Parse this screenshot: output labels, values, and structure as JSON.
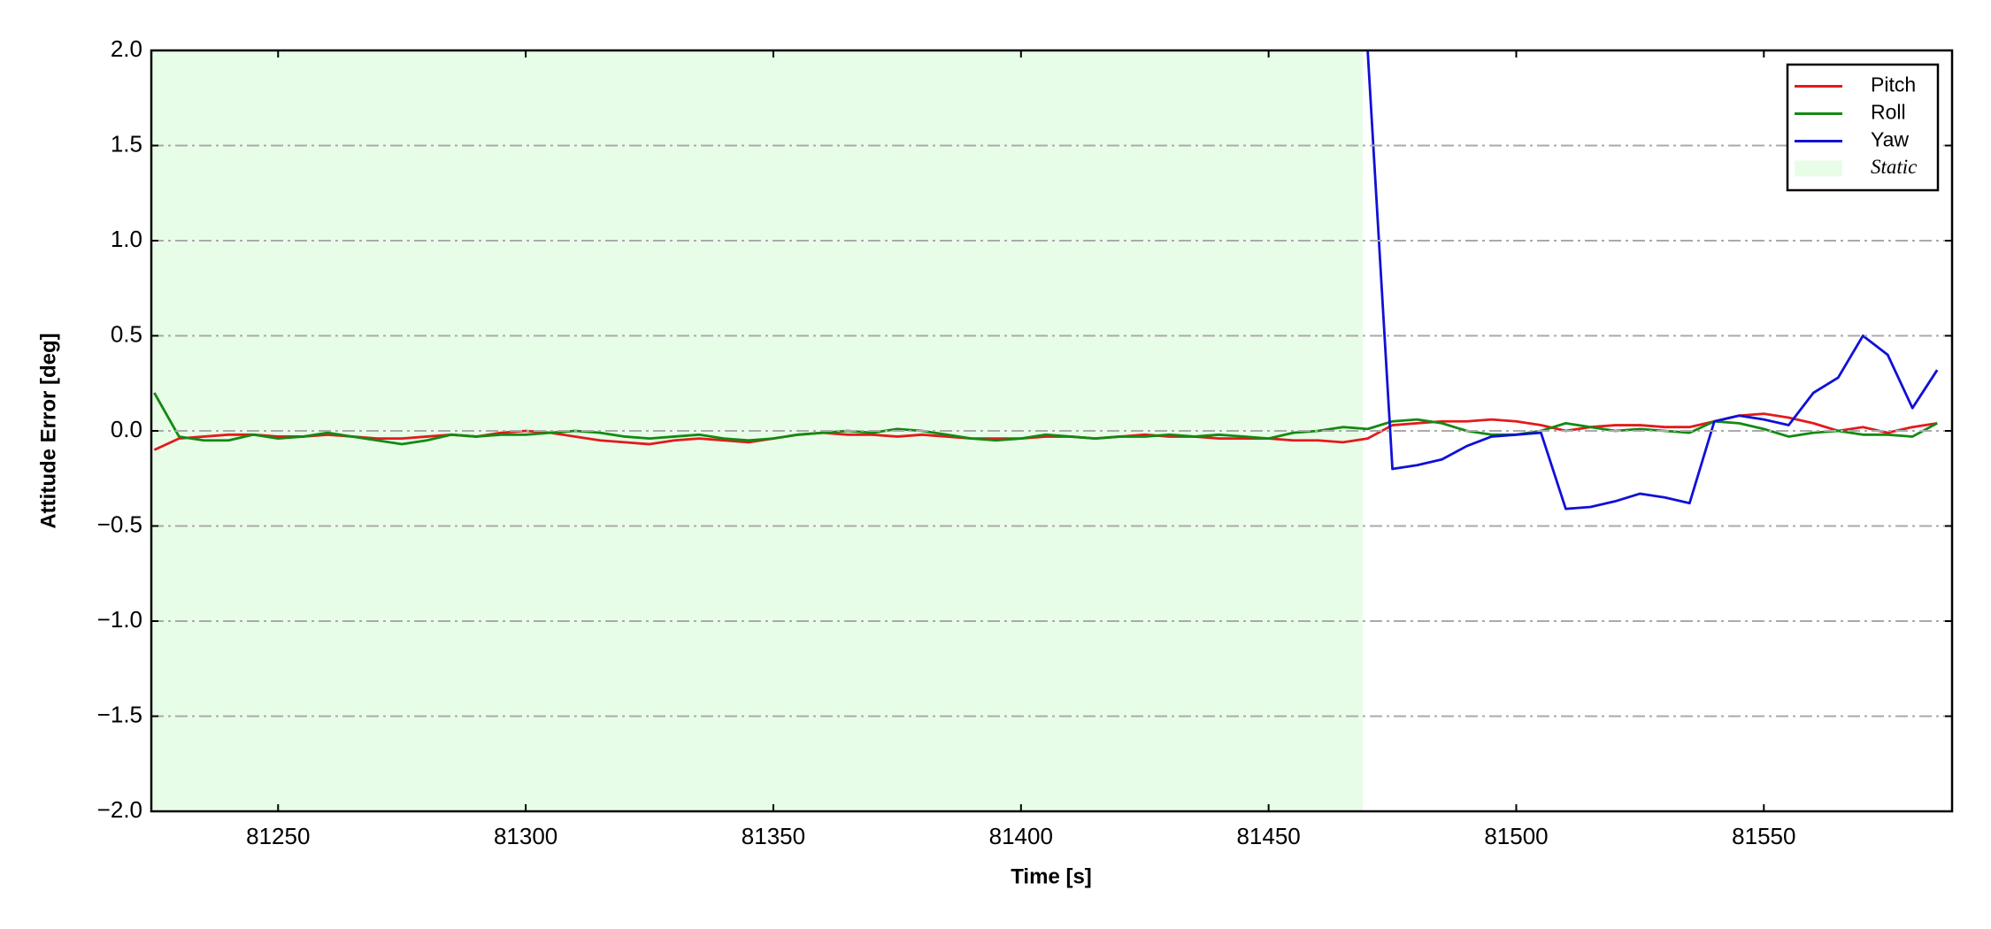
{
  "chart_data": {
    "type": "line",
    "xlabel": "Time [s]",
    "ylabel": "Attitude Error [deg]",
    "x": [
      81225,
      81230,
      81235,
      81240,
      81245,
      81250,
      81255,
      81260,
      81265,
      81270,
      81275,
      81280,
      81285,
      81290,
      81295,
      81300,
      81305,
      81310,
      81315,
      81320,
      81325,
      81330,
      81335,
      81340,
      81345,
      81350,
      81355,
      81360,
      81365,
      81370,
      81375,
      81380,
      81385,
      81390,
      81395,
      81400,
      81405,
      81410,
      81415,
      81420,
      81425,
      81430,
      81435,
      81440,
      81445,
      81450,
      81455,
      81460,
      81465,
      81470,
      81475,
      81480,
      81485,
      81490,
      81495,
      81500,
      81505,
      81510,
      81515,
      81520,
      81525,
      81530,
      81535,
      81540,
      81545,
      81550,
      81555,
      81560,
      81565,
      81570,
      81575,
      81580,
      81585
    ],
    "series": [
      {
        "name": "Pitch",
        "color": "#e41a1c",
        "values": [
          -0.1,
          -0.04,
          -0.03,
          -0.02,
          -0.02,
          -0.03,
          -0.03,
          -0.02,
          -0.03,
          -0.04,
          -0.04,
          -0.03,
          -0.02,
          -0.03,
          -0.01,
          0.0,
          -0.01,
          -0.03,
          -0.05,
          -0.06,
          -0.07,
          -0.05,
          -0.04,
          -0.05,
          -0.06,
          -0.04,
          -0.02,
          -0.01,
          -0.02,
          -0.02,
          -0.03,
          -0.02,
          -0.03,
          -0.04,
          -0.04,
          -0.04,
          -0.03,
          -0.03,
          -0.04,
          -0.03,
          -0.02,
          -0.03,
          -0.03,
          -0.04,
          -0.04,
          -0.04,
          -0.05,
          -0.05,
          -0.06,
          -0.04,
          0.03,
          0.04,
          0.05,
          0.05,
          0.06,
          0.05,
          0.03,
          0.0,
          0.02,
          0.03,
          0.03,
          0.02,
          0.02,
          0.05,
          0.08,
          0.09,
          0.07,
          0.04,
          0.0,
          0.02,
          -0.01,
          0.02,
          0.04
        ]
      },
      {
        "name": "Roll",
        "color": "#138a13",
        "values": [
          0.2,
          -0.03,
          -0.05,
          -0.05,
          -0.02,
          -0.04,
          -0.03,
          -0.01,
          -0.03,
          -0.05,
          -0.07,
          -0.05,
          -0.02,
          -0.03,
          -0.02,
          -0.02,
          -0.01,
          0.0,
          -0.01,
          -0.03,
          -0.04,
          -0.03,
          -0.02,
          -0.04,
          -0.05,
          -0.04,
          -0.02,
          -0.01,
          0.0,
          -0.01,
          0.01,
          0.0,
          -0.02,
          -0.04,
          -0.05,
          -0.04,
          -0.02,
          -0.03,
          -0.04,
          -0.03,
          -0.03,
          -0.02,
          -0.03,
          -0.02,
          -0.03,
          -0.04,
          -0.01,
          0.0,
          0.02,
          0.01,
          0.05,
          0.06,
          0.04,
          0.0,
          -0.02,
          -0.02,
          0.0,
          0.04,
          0.02,
          0.0,
          0.01,
          0.0,
          -0.01,
          0.05,
          0.04,
          0.01,
          -0.03,
          -0.01,
          0.0,
          -0.02,
          -0.02,
          -0.03,
          0.04
        ]
      },
      {
        "name": "Yaw",
        "color": "#1010d8",
        "values": [
          null,
          null,
          null,
          null,
          null,
          null,
          null,
          null,
          null,
          null,
          null,
          null,
          null,
          null,
          null,
          null,
          null,
          null,
          null,
          null,
          null,
          null,
          null,
          null,
          null,
          null,
          null,
          null,
          null,
          null,
          null,
          null,
          null,
          null,
          null,
          null,
          null,
          null,
          null,
          null,
          null,
          null,
          null,
          null,
          null,
          null,
          null,
          null,
          null,
          2.0,
          -0.2,
          -0.18,
          -0.15,
          -0.08,
          -0.03,
          -0.02,
          -0.01,
          -0.41,
          -0.4,
          -0.37,
          -0.33,
          -0.35,
          -0.38,
          0.05,
          0.08,
          0.06,
          0.03,
          0.2,
          0.28,
          0.5,
          0.4,
          0.12,
          0.32
        ]
      }
    ],
    "spans": [
      {
        "name": "Static",
        "color": "#e8fde8",
        "x": [
          81224.4,
          81469
        ]
      }
    ],
    "xlim": [
      81224.4,
      81588
    ],
    "ylim": [
      -2.0,
      2.0
    ],
    "xticks": [
      81250,
      81300,
      81350,
      81400,
      81450,
      81500,
      81550
    ],
    "yticks": [
      {
        "value": -2.0,
        "label": "−2.0"
      },
      {
        "value": -1.5,
        "label": "−1.5"
      },
      {
        "value": -1.0,
        "label": "−1.0"
      },
      {
        "value": -0.5,
        "label": "−0.5"
      },
      {
        "value": 0.0,
        "label": "0.0"
      },
      {
        "value": 0.5,
        "label": "0.5"
      },
      {
        "value": 1.0,
        "label": "1.0"
      },
      {
        "value": 1.5,
        "label": "1.5"
      },
      {
        "value": 2.0,
        "label": "2.0"
      }
    ],
    "grid": true,
    "legend": "upper right"
  }
}
